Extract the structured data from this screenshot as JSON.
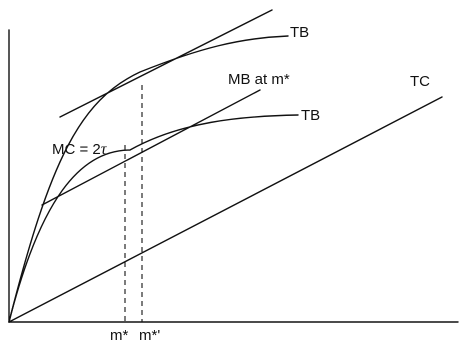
{
  "labels": {
    "tb_upper": "TB",
    "tb_lower": "TB",
    "mb": "MB at m*",
    "tc": "TC",
    "mc_prefix": "MC = 2",
    "mc_symbol": "τ",
    "m_star": "m*",
    "m_star_prime": "m*'"
  }
}
